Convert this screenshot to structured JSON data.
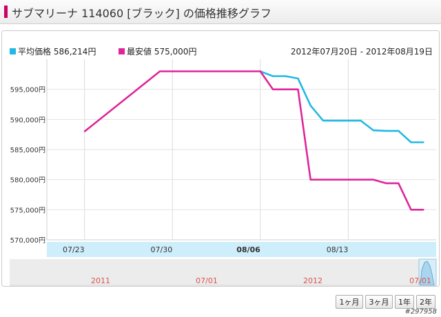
{
  "header": {
    "title": "サブマリーナ 114060 [ブラック] の価格推移グラフ"
  },
  "legend": [
    {
      "name": "平均価格 586,214円",
      "color": "#21b8e3"
    },
    {
      "name": "最安値 575,000円",
      "color": "#e0249a"
    }
  ],
  "date_range": "2012年07月20日 - 2012年08月19日",
  "buttons": {
    "one_month": "1ヶ月",
    "three_month": "3ヶ月",
    "one_year": "1年",
    "two_year": "2年"
  },
  "item_id": "#297958",
  "chart_data": {
    "type": "line",
    "xlabel": "",
    "ylabel": "",
    "ylim": [
      570000,
      600000
    ],
    "y_ticks": [
      {
        "value": 570000,
        "label": "570,000円"
      },
      {
        "value": 575000,
        "label": "575,000円"
      },
      {
        "value": 580000,
        "label": "580,000円"
      },
      {
        "value": 585000,
        "label": "585,000円"
      },
      {
        "value": 590000,
        "label": "590,000円"
      },
      {
        "value": 595000,
        "label": "595,000円"
      }
    ],
    "x_ticks": [
      {
        "date": "2012-07-23",
        "label": "07/23",
        "bold": false
      },
      {
        "date": "2012-07-30",
        "label": "07/30",
        "bold": false
      },
      {
        "date": "2012-08-06",
        "label": "08/06",
        "bold": true
      },
      {
        "date": "2012-08-13",
        "label": "08/13",
        "bold": false
      }
    ],
    "series": [
      {
        "name": "平均価格",
        "color": "#21b8e3",
        "points": [
          [
            "2012-08-06",
            598000
          ],
          [
            "2012-08-07",
            597200
          ],
          [
            "2012-08-08",
            597200
          ],
          [
            "2012-08-09",
            596800
          ],
          [
            "2012-08-10",
            592300
          ],
          [
            "2012-08-11",
            589800
          ],
          [
            "2012-08-12",
            589800
          ],
          [
            "2012-08-13",
            589800
          ],
          [
            "2012-08-14",
            589800
          ],
          [
            "2012-08-15",
            588200
          ],
          [
            "2012-08-16",
            588100
          ],
          [
            "2012-08-17",
            588100
          ],
          [
            "2012-08-18",
            586200
          ],
          [
            "2012-08-19",
            586200
          ]
        ]
      },
      {
        "name": "最安値",
        "color": "#e0249a",
        "points": [
          [
            "2012-07-23",
            588000
          ],
          [
            "2012-07-29",
            598000
          ],
          [
            "2012-07-30",
            598000
          ],
          [
            "2012-08-06",
            598000
          ],
          [
            "2012-08-07",
            595000
          ],
          [
            "2012-08-08",
            595000
          ],
          [
            "2012-08-09",
            595000
          ],
          [
            "2012-08-10",
            580000
          ],
          [
            "2012-08-11",
            580000
          ],
          [
            "2012-08-12",
            580000
          ],
          [
            "2012-08-13",
            580000
          ],
          [
            "2012-08-14",
            580000
          ],
          [
            "2012-08-15",
            580000
          ],
          [
            "2012-08-16",
            579400
          ],
          [
            "2012-08-17",
            579400
          ],
          [
            "2012-08-18",
            575000
          ],
          [
            "2012-08-19",
            575000
          ]
        ]
      }
    ],
    "navigator": {
      "labels": [
        {
          "label": "2011"
        },
        {
          "label": "07/01"
        },
        {
          "label": "2012"
        },
        {
          "label": "07/01"
        }
      ]
    }
  }
}
